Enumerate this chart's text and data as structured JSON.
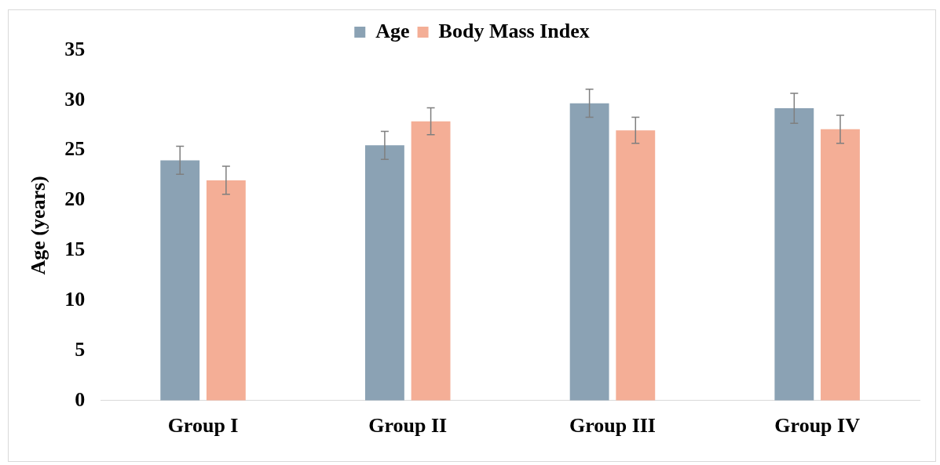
{
  "chart_data": {
    "type": "bar",
    "ylabel": "Age (years)",
    "categories": [
      "Group I",
      "Group II",
      "Group III",
      "Group IV"
    ],
    "series": [
      {
        "name": "Age",
        "color": "#8ba2b4",
        "values": [
          24,
          25.5,
          29.7,
          29.2
        ],
        "errors": [
          1.4,
          1.4,
          1.4,
          1.5
        ]
      },
      {
        "name": "Body Mass Index",
        "color": "#f4ae96",
        "values": [
          22,
          27.9,
          27,
          27.1
        ],
        "errors": [
          1.4,
          1.35,
          1.3,
          1.4
        ]
      }
    ],
    "ylim": [
      0,
      35
    ],
    "yticks": [
      0,
      5,
      10,
      15,
      20,
      25,
      30,
      35
    ],
    "grid": false,
    "legend": "top"
  }
}
